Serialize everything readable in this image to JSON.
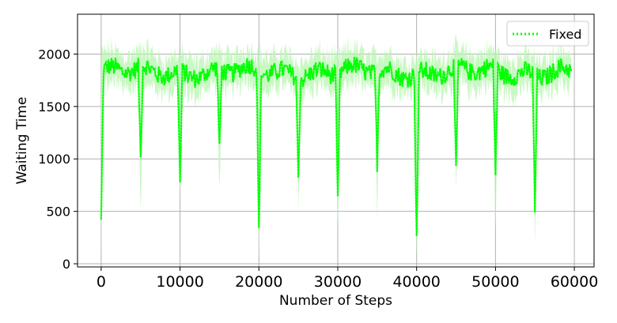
{
  "chart_data": {
    "type": "line",
    "title": "",
    "xlabel": "Number of Steps",
    "ylabel": "Waiting Time",
    "xlim": [
      -3000,
      62500
    ],
    "ylim": [
      -30,
      2380
    ],
    "x_ticks": [
      0,
      10000,
      20000,
      30000,
      40000,
      50000,
      60000
    ],
    "x_tick_labels": [
      "0",
      "10000",
      "20000",
      "30000",
      "40000",
      "50000",
      "60000"
    ],
    "y_ticks": [
      0,
      500,
      1000,
      1500,
      2000
    ],
    "y_tick_labels": [
      "0",
      "500",
      "1000",
      "1500",
      "2000"
    ],
    "grid": true,
    "legend_position": "top-right",
    "series": [
      {
        "name": "Fixed",
        "color": "#00ff00",
        "band_color": "#b8f5b0",
        "line_style": "dotted",
        "baseline": 1830,
        "band_halfwidth": 160,
        "noise_amplitude": 90,
        "x_range": [
          0,
          59600
        ],
        "step": 100,
        "dips": [
          {
            "x": 0,
            "y": 400,
            "band_min": 0
          },
          {
            "x": 5000,
            "y": 950,
            "band_min": 450
          },
          {
            "x": 10000,
            "y": 750,
            "band_min": 650
          },
          {
            "x": 15000,
            "y": 1030,
            "band_min": 620
          },
          {
            "x": 20000,
            "y": 280,
            "band_min": 0
          },
          {
            "x": 25000,
            "y": 870,
            "band_min": 570
          },
          {
            "x": 30000,
            "y": 600,
            "band_min": 300
          },
          {
            "x": 35000,
            "y": 960,
            "band_min": 500
          },
          {
            "x": 40000,
            "y": 200,
            "band_min": 0
          },
          {
            "x": 45000,
            "y": 790,
            "band_min": 600
          },
          {
            "x": 50000,
            "y": 830,
            "band_min": 300
          },
          {
            "x": 55000,
            "y": 510,
            "band_min": 220
          }
        ]
      }
    ]
  }
}
